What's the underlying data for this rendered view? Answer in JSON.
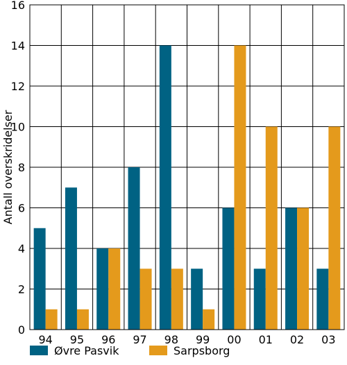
{
  "chart_data": {
    "type": "bar",
    "title": "",
    "xlabel": "",
    "ylabel": "Antall overskridelser",
    "categories": [
      "94",
      "95",
      "96",
      "97",
      "98",
      "99",
      "00",
      "01",
      "02",
      "03"
    ],
    "series": [
      {
        "name": "Øvre Pasvik",
        "color": "#006283",
        "values": [
          5,
          7,
          4,
          8,
          14,
          3,
          6,
          3,
          6,
          3
        ]
      },
      {
        "name": "Sarpsborg",
        "color": "#e49a1c",
        "values": [
          1,
          1,
          4,
          3,
          3,
          1,
          14,
          10,
          6,
          10
        ]
      }
    ],
    "ylim": [
      0,
      16
    ],
    "yticks": [
      0,
      2,
      4,
      6,
      8,
      10,
      12,
      14,
      16
    ],
    "grid": true,
    "legend": "bottom"
  }
}
